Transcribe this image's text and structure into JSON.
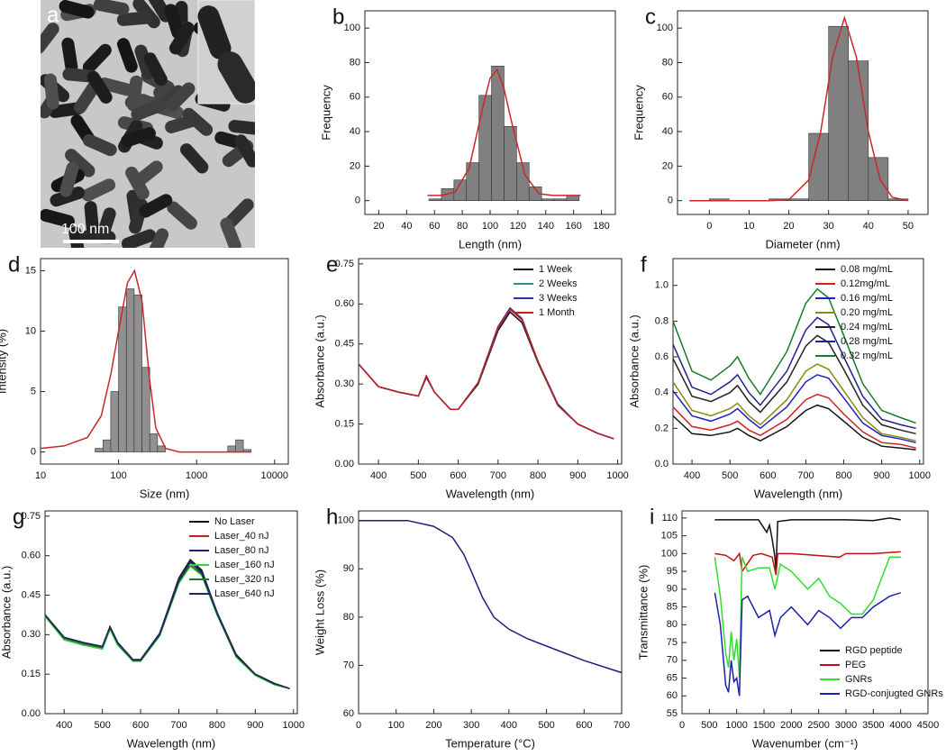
{
  "image_panel": {
    "label": "a",
    "scale_bar": "100 nm"
  },
  "chart_data": [
    {
      "type": "histogram",
      "panel_label": "b",
      "x_label": "Length (nm)",
      "y_label": "Frequency",
      "color": "#808080",
      "bins": [
        56,
        65,
        74,
        83,
        92,
        101,
        110,
        119,
        128,
        137,
        146,
        155,
        164
      ],
      "values": [
        1,
        7,
        12,
        22,
        61,
        78,
        43,
        22,
        8,
        1,
        1,
        3
      ],
      "fit": {
        "color": "#c8282a",
        "x": [
          55,
          65,
          75,
          85,
          95,
          100,
          105,
          110,
          115,
          125,
          135,
          145,
          155,
          165
        ],
        "values": [
          3,
          3,
          5,
          19,
          55,
          71,
          76,
          65,
          47,
          15,
          4,
          3,
          3,
          3
        ]
      },
      "xlim": [
        10,
        190
      ],
      "xticks": [
        20,
        40,
        60,
        80,
        100,
        120,
        140,
        160,
        180
      ],
      "ylim": [
        -8,
        110
      ],
      "yticks": [
        0,
        20,
        40,
        60,
        80,
        100
      ]
    },
    {
      "type": "histogram",
      "panel_label": "c",
      "x_label": "Diameter (nm)",
      "y_label": "Frequency",
      "color": "#808080",
      "bins": [
        -5,
        0,
        5,
        10,
        15,
        20,
        25,
        30,
        35,
        40,
        45,
        50
      ],
      "values": [
        0,
        1,
        0,
        0,
        1,
        1,
        39,
        101,
        81,
        25,
        1
      ],
      "fit": {
        "color": "#c8282a",
        "x": [
          -5,
          5,
          15,
          20,
          25,
          28,
          31,
          34,
          37,
          40,
          43,
          46,
          50
        ],
        "values": [
          0,
          0,
          0,
          0.5,
          12,
          40,
          83,
          106,
          83,
          40,
          12,
          2,
          0
        ]
      },
      "xlim": [
        -8,
        55
      ],
      "xticks": [
        0,
        10,
        20,
        30,
        40,
        50
      ],
      "ylim": [
        -8,
        110
      ],
      "yticks": [
        0,
        20,
        40,
        60,
        80,
        100
      ]
    },
    {
      "type": "histogram",
      "panel_label": "d",
      "x_label": "Size (nm)",
      "y_label": "Intensity (%)",
      "color": "#909090",
      "xscale": "log",
      "bins": [
        10,
        12.6,
        15.8,
        20,
        25.1,
        31.6,
        39.8,
        50.1,
        63.1,
        79.4,
        100,
        125.9,
        158.5,
        199.5,
        251.2,
        316.2,
        398.1,
        501.2,
        631,
        794.3,
        1000,
        1258.9,
        1584.9,
        1995.3,
        2511.9,
        3162.3,
        3981.1,
        5011.9
      ],
      "values": [
        0,
        0,
        0,
        0,
        0,
        0,
        0,
        0.3,
        1,
        5,
        12,
        13.5,
        13,
        7,
        1.5,
        0.5,
        0,
        0,
        0,
        0,
        0,
        0,
        0,
        0,
        0.5,
        1,
        0.2
      ],
      "fit": {
        "color": "#c8282a",
        "x": [
          10,
          20,
          40,
          60,
          80,
          100,
          130,
          160,
          200,
          250,
          300,
          400,
          600,
          1000,
          5000
        ],
        "values": [
          0.3,
          0.5,
          1.2,
          3,
          6.5,
          10,
          14,
          15,
          12.5,
          6,
          2,
          0.3,
          0,
          0,
          0
        ]
      },
      "xlim": [
        10,
        15000
      ],
      "xticks": [
        10,
        100,
        1000,
        10000
      ],
      "ylim": [
        -1,
        16
      ],
      "yticks": [
        0,
        5,
        10,
        15
      ]
    },
    {
      "type": "line",
      "panel_label": "e",
      "x_label": "Wavelength (nm)",
      "y_label": "Absorbance (a.u.)",
      "legend": "upper right",
      "x": [
        350,
        400,
        450,
        500,
        520,
        540,
        580,
        600,
        650,
        700,
        730,
        760,
        800,
        850,
        900,
        950,
        990
      ],
      "series": [
        {
          "name": "1 Week",
          "color": "#111111",
          "values": [
            0.375,
            0.29,
            0.27,
            0.255,
            0.325,
            0.27,
            0.205,
            0.205,
            0.3,
            0.5,
            0.57,
            0.53,
            0.38,
            0.22,
            0.15,
            0.115,
            0.095
          ]
        },
        {
          "name": "2 Weeks",
          "color": "#2e8b8b",
          "values": [
            0.375,
            0.29,
            0.27,
            0.255,
            0.33,
            0.27,
            0.205,
            0.205,
            0.305,
            0.51,
            0.58,
            0.54,
            0.385,
            0.22,
            0.15,
            0.115,
            0.095
          ]
        },
        {
          "name": "3 Weeks",
          "color": "#3030a0",
          "values": [
            0.375,
            0.29,
            0.27,
            0.255,
            0.33,
            0.27,
            0.205,
            0.205,
            0.305,
            0.515,
            0.585,
            0.545,
            0.385,
            0.225,
            0.15,
            0.115,
            0.095
          ]
        },
        {
          "name": "1 Month",
          "color": "#c02020",
          "values": [
            0.375,
            0.29,
            0.27,
            0.255,
            0.33,
            0.27,
            0.205,
            0.205,
            0.305,
            0.51,
            0.58,
            0.54,
            0.385,
            0.22,
            0.15,
            0.115,
            0.095
          ]
        }
      ],
      "xlim": [
        350,
        1010
      ],
      "xticks": [
        400,
        500,
        600,
        700,
        800,
        900,
        1000
      ],
      "ylim": [
        0,
        0.77
      ],
      "yticks": [
        {
          "value": 0,
          "label": "0.00"
        },
        0.15,
        {
          "value": 0.3,
          "label": "0.30"
        },
        0.45,
        {
          "value": 0.6,
          "label": "0.60"
        },
        0.75
      ]
    },
    {
      "type": "line",
      "panel_label": "f",
      "x_label": "Wavelength (nm)",
      "y_label": "Absorbance (a.u.)",
      "legend": "upper right",
      "x": [
        350,
        400,
        450,
        500,
        520,
        550,
        580,
        650,
        700,
        730,
        760,
        800,
        850,
        900,
        950,
        990
      ],
      "series": [
        {
          "name": "0.08 mg/mL",
          "color": "#111111",
          "values": [
            0.27,
            0.17,
            0.16,
            0.18,
            0.2,
            0.16,
            0.13,
            0.21,
            0.3,
            0.33,
            0.31,
            0.24,
            0.15,
            0.1,
            0.09,
            0.08
          ]
        },
        {
          "name": "0.12mg/mL",
          "color": "#d02020",
          "values": [
            0.32,
            0.21,
            0.19,
            0.22,
            0.24,
            0.19,
            0.16,
            0.25,
            0.36,
            0.39,
            0.37,
            0.28,
            0.18,
            0.12,
            0.11,
            0.09
          ]
        },
        {
          "name": "0.16 mg/mL",
          "color": "#2020c0",
          "values": [
            0.41,
            0.27,
            0.24,
            0.28,
            0.31,
            0.25,
            0.2,
            0.32,
            0.46,
            0.5,
            0.48,
            0.37,
            0.23,
            0.16,
            0.14,
            0.12
          ]
        },
        {
          "name": "0.20 mg/mL",
          "color": "#8a8a10",
          "values": [
            0.46,
            0.3,
            0.27,
            0.31,
            0.34,
            0.27,
            0.22,
            0.36,
            0.52,
            0.56,
            0.53,
            0.41,
            0.26,
            0.17,
            0.15,
            0.13
          ]
        },
        {
          "name": "0.24 mg/mL",
          "color": "#222222",
          "values": [
            0.59,
            0.38,
            0.35,
            0.4,
            0.44,
            0.35,
            0.29,
            0.46,
            0.66,
            0.72,
            0.68,
            0.53,
            0.33,
            0.22,
            0.19,
            0.17
          ]
        },
        {
          "name": "0.28 mg/mL",
          "color": "#202090",
          "values": [
            0.67,
            0.43,
            0.39,
            0.46,
            0.5,
            0.4,
            0.33,
            0.52,
            0.75,
            0.82,
            0.78,
            0.6,
            0.38,
            0.25,
            0.22,
            0.2
          ]
        },
        {
          "name": "0.32 mg/mL",
          "color": "#1a7a2a",
          "values": [
            0.8,
            0.52,
            0.47,
            0.55,
            0.6,
            0.48,
            0.39,
            0.63,
            0.9,
            0.98,
            0.93,
            0.72,
            0.45,
            0.3,
            0.26,
            0.23
          ]
        }
      ],
      "xlim": [
        350,
        1010
      ],
      "xticks": [
        400,
        500,
        600,
        700,
        800,
        900,
        1000
      ],
      "ylim": [
        0,
        1.15
      ],
      "yticks": [
        {
          "value": 0,
          "label": "0.0"
        },
        0.2,
        0.4,
        0.6,
        0.8,
        {
          "value": 1,
          "label": "1.0"
        }
      ]
    },
    {
      "type": "line",
      "panel_label": "g",
      "x_label": "Wavelength (nm)",
      "y_label": "Absorbance (a.u.)",
      "legend": "upper right",
      "x": [
        350,
        400,
        450,
        500,
        520,
        540,
        580,
        600,
        650,
        700,
        730,
        760,
        800,
        850,
        900,
        950,
        990
      ],
      "series": [
        {
          "name": "No Laser",
          "color": "#111111",
          "values": [
            0.375,
            0.29,
            0.27,
            0.255,
            0.33,
            0.27,
            0.205,
            0.205,
            0.305,
            0.515,
            0.585,
            0.545,
            0.385,
            0.225,
            0.15,
            0.115,
            0.095
          ]
        },
        {
          "name": "Laser_40 nJ",
          "color": "#c02020",
          "values": [
            0.375,
            0.29,
            0.27,
            0.255,
            0.33,
            0.27,
            0.205,
            0.205,
            0.305,
            0.51,
            0.58,
            0.54,
            0.385,
            0.22,
            0.15,
            0.115,
            0.095
          ]
        },
        {
          "name": "Laser_80 nJ",
          "color": "#202070",
          "values": [
            0.375,
            0.29,
            0.27,
            0.255,
            0.33,
            0.27,
            0.205,
            0.205,
            0.305,
            0.51,
            0.58,
            0.54,
            0.385,
            0.22,
            0.15,
            0.115,
            0.095
          ]
        },
        {
          "name": "Laser_160 nJ",
          "color": "#3ad23a",
          "values": [
            0.37,
            0.28,
            0.26,
            0.245,
            0.32,
            0.26,
            0.2,
            0.2,
            0.295,
            0.495,
            0.56,
            0.525,
            0.375,
            0.215,
            0.145,
            0.11,
            0.095
          ]
        },
        {
          "name": "Laser_320 nJ",
          "color": "#1a7a2a",
          "values": [
            0.372,
            0.285,
            0.265,
            0.25,
            0.325,
            0.265,
            0.2,
            0.2,
            0.3,
            0.5,
            0.565,
            0.53,
            0.38,
            0.22,
            0.148,
            0.112,
            0.095
          ]
        },
        {
          "name": "Laser_640 nJ",
          "color": "#1c2a60",
          "values": [
            0.375,
            0.29,
            0.27,
            0.255,
            0.33,
            0.27,
            0.205,
            0.205,
            0.3,
            0.505,
            0.575,
            0.535,
            0.38,
            0.22,
            0.15,
            0.115,
            0.095
          ]
        }
      ],
      "xlim": [
        350,
        1010
      ],
      "xticks": [
        400,
        500,
        600,
        700,
        800,
        900,
        1000
      ],
      "ylim": [
        0,
        0.77
      ],
      "yticks": [
        {
          "value": 0,
          "label": "0.00"
        },
        0.15,
        {
          "value": 0.3,
          "label": "0.30"
        },
        0.45,
        {
          "value": 0.6,
          "label": "0.60"
        },
        0.75
      ]
    },
    {
      "type": "line",
      "panel_label": "h",
      "x_label": "Temperature (°C)",
      "y_label": "Weight Loss (%)",
      "x": [
        0,
        100,
        130,
        200,
        250,
        280,
        300,
        330,
        360,
        400,
        450,
        500,
        600,
        700
      ],
      "series": [
        {
          "color": "#1c1c7a",
          "values": [
            100,
            100,
            100,
            98.8,
            96.5,
            93,
            89.5,
            84,
            80,
            77.5,
            75.5,
            74,
            71,
            68.5
          ]
        }
      ],
      "xlim": [
        0,
        700
      ],
      "xticks": [
        0,
        100,
        200,
        300,
        400,
        500,
        600,
        700
      ],
      "ylim": [
        60,
        102
      ],
      "yticks": [
        60,
        70,
        80,
        90,
        100
      ]
    },
    {
      "type": "line",
      "panel_label": "i",
      "x_label": "Wavenumber (cm⁻¹)",
      "y_label": "Transmittance (%)",
      "legend": "lower right",
      "series": [
        {
          "name": "RGD peptide",
          "color": "#111111",
          "x": [
            600,
            1000,
            1400,
            1550,
            1600,
            1650,
            1700,
            1720,
            1750,
            2000,
            2500,
            3000,
            3500,
            3800,
            4000
          ],
          "values": [
            109.5,
            109.5,
            109.5,
            106,
            108,
            104,
            99,
            95,
            109,
            109.5,
            109.5,
            109.5,
            109.3,
            110,
            109.5
          ]
        },
        {
          "name": "PEG",
          "color": "#c01010",
          "x": [
            600,
            800,
            950,
            1050,
            1100,
            1300,
            1450,
            1650,
            1720,
            1750,
            2000,
            2880,
            3000,
            3500,
            4000
          ],
          "values": [
            100,
            99.5,
            98,
            100,
            95,
            99.5,
            100,
            99,
            94,
            100,
            100,
            99,
            100,
            100,
            100.5
          ]
        },
        {
          "name": "GNRs",
          "color": "#30dd30",
          "x": [
            600,
            700,
            800,
            850,
            900,
            950,
            1000,
            1050,
            1100,
            1200,
            1400,
            1600,
            1700,
            1800,
            2000,
            2300,
            2500,
            2700,
            2900,
            3100,
            3300,
            3500,
            3800,
            4000
          ],
          "values": [
            99,
            88,
            72,
            68,
            78,
            70,
            76,
            65,
            99,
            95,
            96,
            96,
            90,
            97,
            95,
            90,
            93,
            88,
            86,
            83,
            83,
            87,
            99,
            99
          ]
        },
        {
          "name": "RGD-conjugted GNRs",
          "color": "#1a22b0",
          "x": [
            600,
            700,
            800,
            850,
            900,
            950,
            1000,
            1050,
            1100,
            1200,
            1400,
            1600,
            1700,
            1800,
            2000,
            2300,
            2500,
            2700,
            2900,
            3100,
            3300,
            3500,
            3800,
            4000
          ],
          "values": [
            89,
            80,
            63,
            61,
            70,
            64,
            65,
            60,
            87,
            88,
            82,
            84,
            77,
            82,
            85,
            80,
            84,
            82,
            79,
            82,
            82,
            85,
            88,
            89
          ]
        }
      ],
      "xlim": [
        0,
        4500
      ],
      "xticks": [
        0,
        500,
        1000,
        1500,
        2000,
        2500,
        3000,
        3500,
        4000,
        4500
      ],
      "ylim": [
        55,
        112
      ],
      "yticks": [
        55,
        60,
        65,
        70,
        75,
        80,
        85,
        90,
        95,
        100,
        105,
        110
      ]
    }
  ]
}
